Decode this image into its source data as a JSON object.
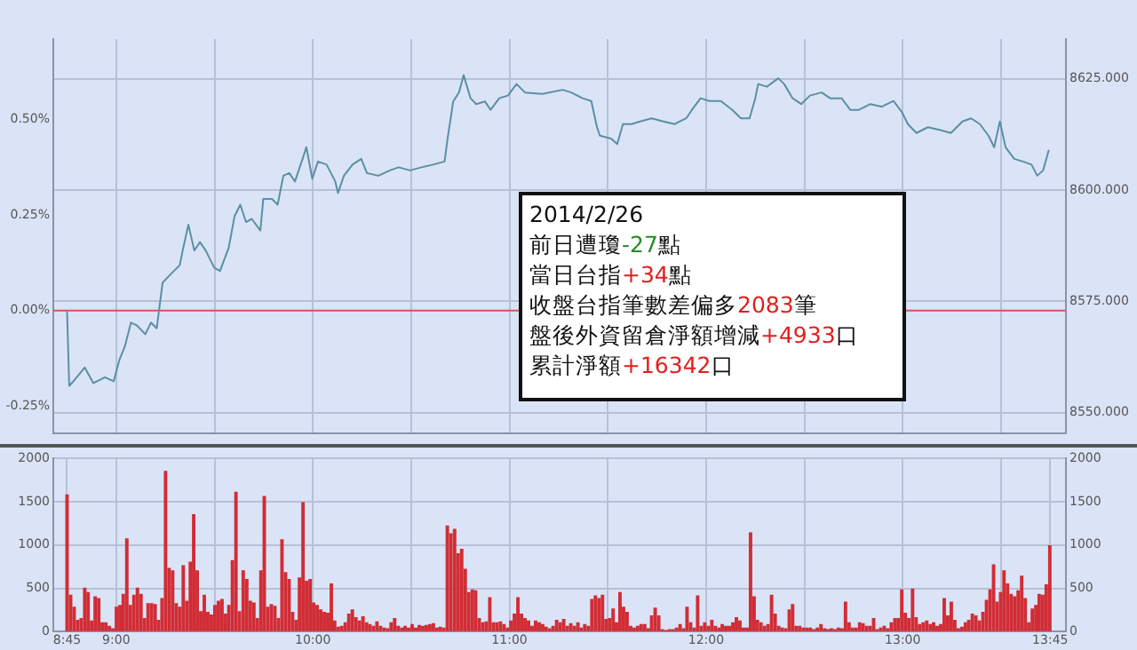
{
  "chart_data": [
    {
      "type": "line",
      "marker": "none",
      "grid": true,
      "tick_labels": "y",
      "x": [
        8.75,
        8.761,
        8.782,
        8.84,
        8.884,
        8.943,
        8.987,
        9.016,
        9.045,
        9.075,
        9.104,
        9.148,
        9.177,
        9.206,
        9.236,
        9.28,
        9.323,
        9.338,
        9.367,
        9.397,
        9.426,
        9.455,
        9.499,
        9.528,
        9.572,
        9.602,
        9.631,
        9.66,
        9.689,
        9.733,
        9.748,
        9.792,
        9.821,
        9.85,
        9.88,
        9.909,
        9.953,
        9.967,
        9.997,
        10.026,
        10.07,
        10.114,
        10.128,
        10.158,
        10.202,
        10.246,
        10.275,
        10.333,
        10.392,
        10.436,
        10.494,
        10.553,
        10.611,
        10.67,
        10.685,
        10.714,
        10.743,
        10.767,
        10.802,
        10.831,
        10.875,
        10.904,
        10.948,
        10.992,
        11.036,
        11.079,
        11.167,
        11.27,
        11.314,
        11.372,
        11.416,
        11.445,
        11.46,
        11.518,
        11.548,
        11.577,
        11.621,
        11.665,
        11.723,
        11.782,
        11.84,
        11.899,
        11.928,
        11.972,
        12.016,
        12.075,
        12.133,
        12.177,
        12.221,
        12.25,
        12.265,
        12.309,
        12.367,
        12.397,
        12.44,
        12.484,
        12.528,
        12.587,
        12.631,
        12.689,
        12.733,
        12.777,
        12.836,
        12.894,
        12.953,
        12.997,
        13.026,
        13.07,
        13.128,
        13.187,
        13.245,
        13.304,
        13.348,
        13.392,
        13.436,
        13.465,
        13.494,
        13.523,
        13.567,
        13.611,
        13.655,
        13.684,
        13.714,
        13.743
      ],
      "series": [
        {
          "color": "#5b8fa3",
          "axis": "y2",
          "values": [
            8572.8,
            8556.0,
            8557.0,
            8560.1,
            8556.6,
            8557.9,
            8557.0,
            8561.8,
            8565.0,
            8570.2,
            8569.6,
            8567.6,
            8570.2,
            8568.9,
            8579.2,
            8581.2,
            8583.1,
            8586.4,
            8592.2,
            8586.4,
            8588.3,
            8586.4,
            8582.5,
            8581.8,
            8587.0,
            8594.1,
            8596.7,
            8592.8,
            8593.5,
            8590.9,
            8598.0,
            8598.0,
            8596.7,
            8603.2,
            8603.8,
            8601.9,
            8607.7,
            8609.6,
            8602.5,
            8606.4,
            8605.7,
            8601.9,
            8599.3,
            8603.2,
            8605.7,
            8607.0,
            8603.8,
            8603.2,
            8604.4,
            8605.1,
            8604.4,
            8605.1,
            8605.7,
            8606.4,
            8611.5,
            8619.9,
            8621.9,
            8625.8,
            8620.6,
            8619.3,
            8619.9,
            8618.0,
            8620.6,
            8621.2,
            8623.8,
            8621.9,
            8621.6,
            8622.5,
            8621.9,
            8620.6,
            8620.0,
            8614.1,
            8612.2,
            8611.5,
            8610.3,
            8614.8,
            8614.8,
            8615.4,
            8616.1,
            8615.4,
            8614.8,
            8616.1,
            8618.0,
            8620.6,
            8620.0,
            8620.0,
            8618.0,
            8616.1,
            8616.1,
            8620.6,
            8623.8,
            8623.2,
            8625.1,
            8623.8,
            8620.6,
            8619.3,
            8621.2,
            8621.9,
            8620.6,
            8620.6,
            8618.0,
            8618.0,
            8619.3,
            8618.7,
            8620.0,
            8617.4,
            8614.8,
            8612.8,
            8614.1,
            8613.5,
            8612.8,
            8615.4,
            8616.1,
            8614.8,
            8612.2,
            8609.6,
            8615.4,
            8609.6,
            8607.0,
            8606.4,
            8605.7,
            8603.2,
            8604.4,
            8609.0
          ]
        }
      ],
      "xlim": [
        8.68,
        13.83
      ],
      "xticks": [
        {
          "value": 9,
          "label": null
        },
        {
          "value": 9.5,
          "label": null
        },
        {
          "value": 10,
          "label": null
        },
        {
          "value": 10.5,
          "label": null
        },
        {
          "value": 11,
          "label": null
        },
        {
          "value": 11.5,
          "label": null
        },
        {
          "value": 12,
          "label": null
        },
        {
          "value": 12.5,
          "label": null
        },
        {
          "value": 13,
          "label": null
        },
        {
          "value": 13.5,
          "label": null
        }
      ],
      "ylim": [
        -0.32,
        0.71
      ],
      "yticks": [
        {
          "value": -0.25,
          "label": "-0.25%"
        },
        {
          "value": 0,
          "label": "0.00%"
        },
        {
          "value": 0.25,
          "label": "0.25%"
        },
        {
          "value": 0.5,
          "label": "0.50%"
        }
      ],
      "y2lim": [
        8545.4,
        8633.9
      ],
      "y2ticks": [
        {
          "value": 8550,
          "label": "8550.000"
        },
        {
          "value": 8575,
          "label": "8575.000"
        },
        {
          "value": 8600,
          "label": "8600.000"
        },
        {
          "value": 8625,
          "label": "8625.000"
        }
      ],
      "ref_lines": [
        {
          "axis": "y",
          "value": 0,
          "color": "#d9525b"
        }
      ],
      "annotations": [
        "2014/2/26",
        "前日遭瓊-27點",
        "當日台指+34點",
        "收盤台指筆數差偏多2083筆",
        "盤後外資留倉淨額增減+4933口",
        "累計淨額+16342口"
      ]
    },
    {
      "type": "bar",
      "grid": true,
      "color": "#d12d35",
      "x": [
        8.75,
        8.768,
        8.786,
        8.804,
        8.822,
        8.84,
        8.857,
        8.875,
        8.893,
        8.911,
        8.929,
        8.947,
        8.965,
        8.983,
        9.001,
        9.019,
        9.036,
        9.054,
        9.072,
        9.09,
        9.108,
        9.126,
        9.144,
        9.162,
        9.18,
        9.198,
        9.215,
        9.233,
        9.251,
        9.269,
        9.287,
        9.305,
        9.323,
        9.341,
        9.359,
        9.377,
        9.394,
        9.412,
        9.43,
        9.448,
        9.466,
        9.484,
        9.502,
        9.52,
        9.538,
        9.556,
        9.573,
        9.591,
        9.609,
        9.627,
        9.646,
        9.664,
        9.682,
        9.7,
        9.718,
        9.736,
        9.753,
        9.771,
        9.789,
        9.807,
        9.825,
        9.843,
        9.861,
        9.879,
        9.897,
        9.915,
        9.932,
        9.95,
        9.968,
        9.986,
        10.004,
        10.022,
        10.04,
        10.058,
        10.076,
        10.094,
        10.111,
        10.129,
        10.147,
        10.165,
        10.183,
        10.201,
        10.219,
        10.237,
        10.255,
        10.273,
        10.29,
        10.308,
        10.326,
        10.344,
        10.362,
        10.38,
        10.398,
        10.416,
        10.434,
        10.452,
        10.469,
        10.487,
        10.505,
        10.523,
        10.541,
        10.559,
        10.577,
        10.595,
        10.613,
        10.631,
        10.648,
        10.666,
        10.684,
        10.702,
        10.721,
        10.739,
        10.757,
        10.775,
        10.793,
        10.811,
        10.828,
        10.846,
        10.864,
        10.882,
        10.9,
        10.918,
        10.936,
        10.954,
        10.972,
        10.99,
        11.007,
        11.025,
        11.043,
        11.061,
        11.079,
        11.097,
        11.115,
        11.133,
        11.151,
        11.169,
        11.186,
        11.204,
        11.222,
        11.24,
        11.258,
        11.276,
        11.294,
        11.312,
        11.33,
        11.348,
        11.365,
        11.383,
        11.401,
        11.419,
        11.437,
        11.455,
        11.473,
        11.491,
        11.509,
        11.527,
        11.544,
        11.562,
        11.58,
        11.598,
        11.616,
        11.634,
        11.652,
        11.67,
        11.688,
        11.706,
        11.723,
        11.741,
        11.759,
        11.777,
        11.796,
        11.814,
        11.832,
        11.85,
        11.868,
        11.886,
        11.903,
        11.921,
        11.939,
        11.957,
        11.975,
        11.993,
        12.011,
        12.029,
        12.047,
        12.065,
        12.082,
        12.1,
        12.118,
        12.136,
        12.154,
        12.172,
        12.19,
        12.208,
        12.226,
        12.244,
        12.261,
        12.279,
        12.297,
        12.315,
        12.333,
        12.351,
        12.369,
        12.387,
        12.405,
        12.423,
        12.44,
        12.458,
        12.476,
        12.494,
        12.512,
        12.53,
        12.548,
        12.566,
        12.584,
        12.602,
        12.619,
        12.637,
        12.655,
        12.673,
        12.691,
        12.709,
        12.727,
        12.745,
        12.763,
        12.781,
        12.798,
        12.816,
        12.834,
        12.852,
        12.87,
        12.888,
        12.906,
        12.924,
        12.942,
        12.96,
        12.977,
        12.995,
        13.013,
        13.031,
        13.05,
        13.068,
        13.086,
        13.104,
        13.122,
        13.14,
        13.157,
        13.175,
        13.193,
        13.211,
        13.229,
        13.247,
        13.265,
        13.283,
        13.301,
        13.319,
        13.336,
        13.354,
        13.372,
        13.39,
        13.408,
        13.426,
        13.444,
        13.462,
        13.48,
        13.498,
        13.515,
        13.533,
        13.551,
        13.569,
        13.587,
        13.605,
        13.623,
        13.641,
        13.659,
        13.677,
        13.694,
        13.712,
        13.73,
        13.748
      ],
      "values": [
        1580,
        420,
        280,
        130,
        150,
        500,
        450,
        120,
        400,
        380,
        100,
        100,
        60,
        30,
        280,
        300,
        430,
        1070,
        300,
        420,
        500,
        430,
        150,
        320,
        320,
        310,
        130,
        380,
        1850,
        730,
        700,
        320,
        280,
        760,
        350,
        800,
        1350,
        700,
        230,
        420,
        220,
        190,
        300,
        350,
        370,
        200,
        300,
        820,
        1610,
        230,
        700,
        600,
        350,
        330,
        150,
        700,
        1560,
        280,
        310,
        290,
        150,
        1060,
        680,
        600,
        220,
        130,
        620,
        1490,
        580,
        600,
        330,
        300,
        250,
        220,
        210,
        550,
        120,
        50,
        60,
        100,
        200,
        250,
        160,
        120,
        170,
        100,
        80,
        60,
        110,
        60,
        40,
        30,
        100,
        150,
        60,
        40,
        60,
        40,
        80,
        40,
        70,
        60,
        70,
        80,
        90,
        40,
        50,
        40,
        1220,
        1130,
        1180,
        900,
        950,
        720,
        450,
        480,
        470,
        150,
        100,
        110,
        390,
        100,
        100,
        110,
        80,
        40,
        120,
        200,
        390,
        200,
        150,
        120,
        60,
        120,
        100,
        80,
        50,
        30,
        60,
        130,
        100,
        140,
        60,
        90,
        60,
        100,
        40,
        80,
        60,
        370,
        410,
        380,
        420,
        140,
        150,
        260,
        100,
        450,
        280,
        220,
        60,
        40,
        60,
        80,
        80,
        30,
        180,
        270,
        180,
        20,
        10,
        20,
        20,
        40,
        80,
        30,
        280,
        100,
        40,
        410,
        60,
        100,
        60,
        130,
        60,
        40,
        80,
        60,
        60,
        100,
        160,
        120,
        40,
        40,
        1140,
        400,
        130,
        100,
        60,
        80,
        420,
        200,
        60,
        40,
        30,
        250,
        310,
        60,
        60,
        40,
        40,
        40,
        20,
        40,
        80,
        30,
        20,
        30,
        20,
        40,
        30,
        340,
        100,
        40,
        40,
        100,
        90,
        60,
        60,
        150,
        20,
        40,
        60,
        30,
        100,
        150,
        150,
        480,
        210,
        150,
        490,
        160,
        80,
        100,
        120,
        80,
        100,
        60,
        80,
        380,
        180,
        340,
        130,
        30,
        50,
        100,
        130,
        200,
        180,
        120,
        220,
        360,
        480,
        770,
        340,
        450,
        700,
        550,
        430,
        400,
        470,
        640,
        380,
        100,
        260,
        300,
        430,
        420,
        540,
        990
      ],
      "xlim": [
        8.68,
        13.83
      ],
      "xticks": [
        {
          "value": 8.75,
          "label": "8:45"
        },
        {
          "value": 9,
          "label": "9:00"
        },
        {
          "value": 9.5,
          "label": null
        },
        {
          "value": 10,
          "label": "10:00"
        },
        {
          "value": 10.5,
          "label": null
        },
        {
          "value": 11,
          "label": "11:00"
        },
        {
          "value": 11.5,
          "label": null
        },
        {
          "value": 12,
          "label": "12:00"
        },
        {
          "value": 12.5,
          "label": null
        },
        {
          "value": 13,
          "label": "13:00"
        },
        {
          "value": 13.5,
          "label": null
        },
        {
          "value": 13.75,
          "label": "13:45"
        }
      ],
      "ylim": [
        0,
        2000
      ],
      "yticks": [
        0,
        500,
        1000,
        1500,
        2000
      ],
      "y2lim": [
        0,
        2000
      ],
      "y2ticks": [
        0,
        500,
        1000,
        1500,
        2000
      ]
    }
  ]
}
